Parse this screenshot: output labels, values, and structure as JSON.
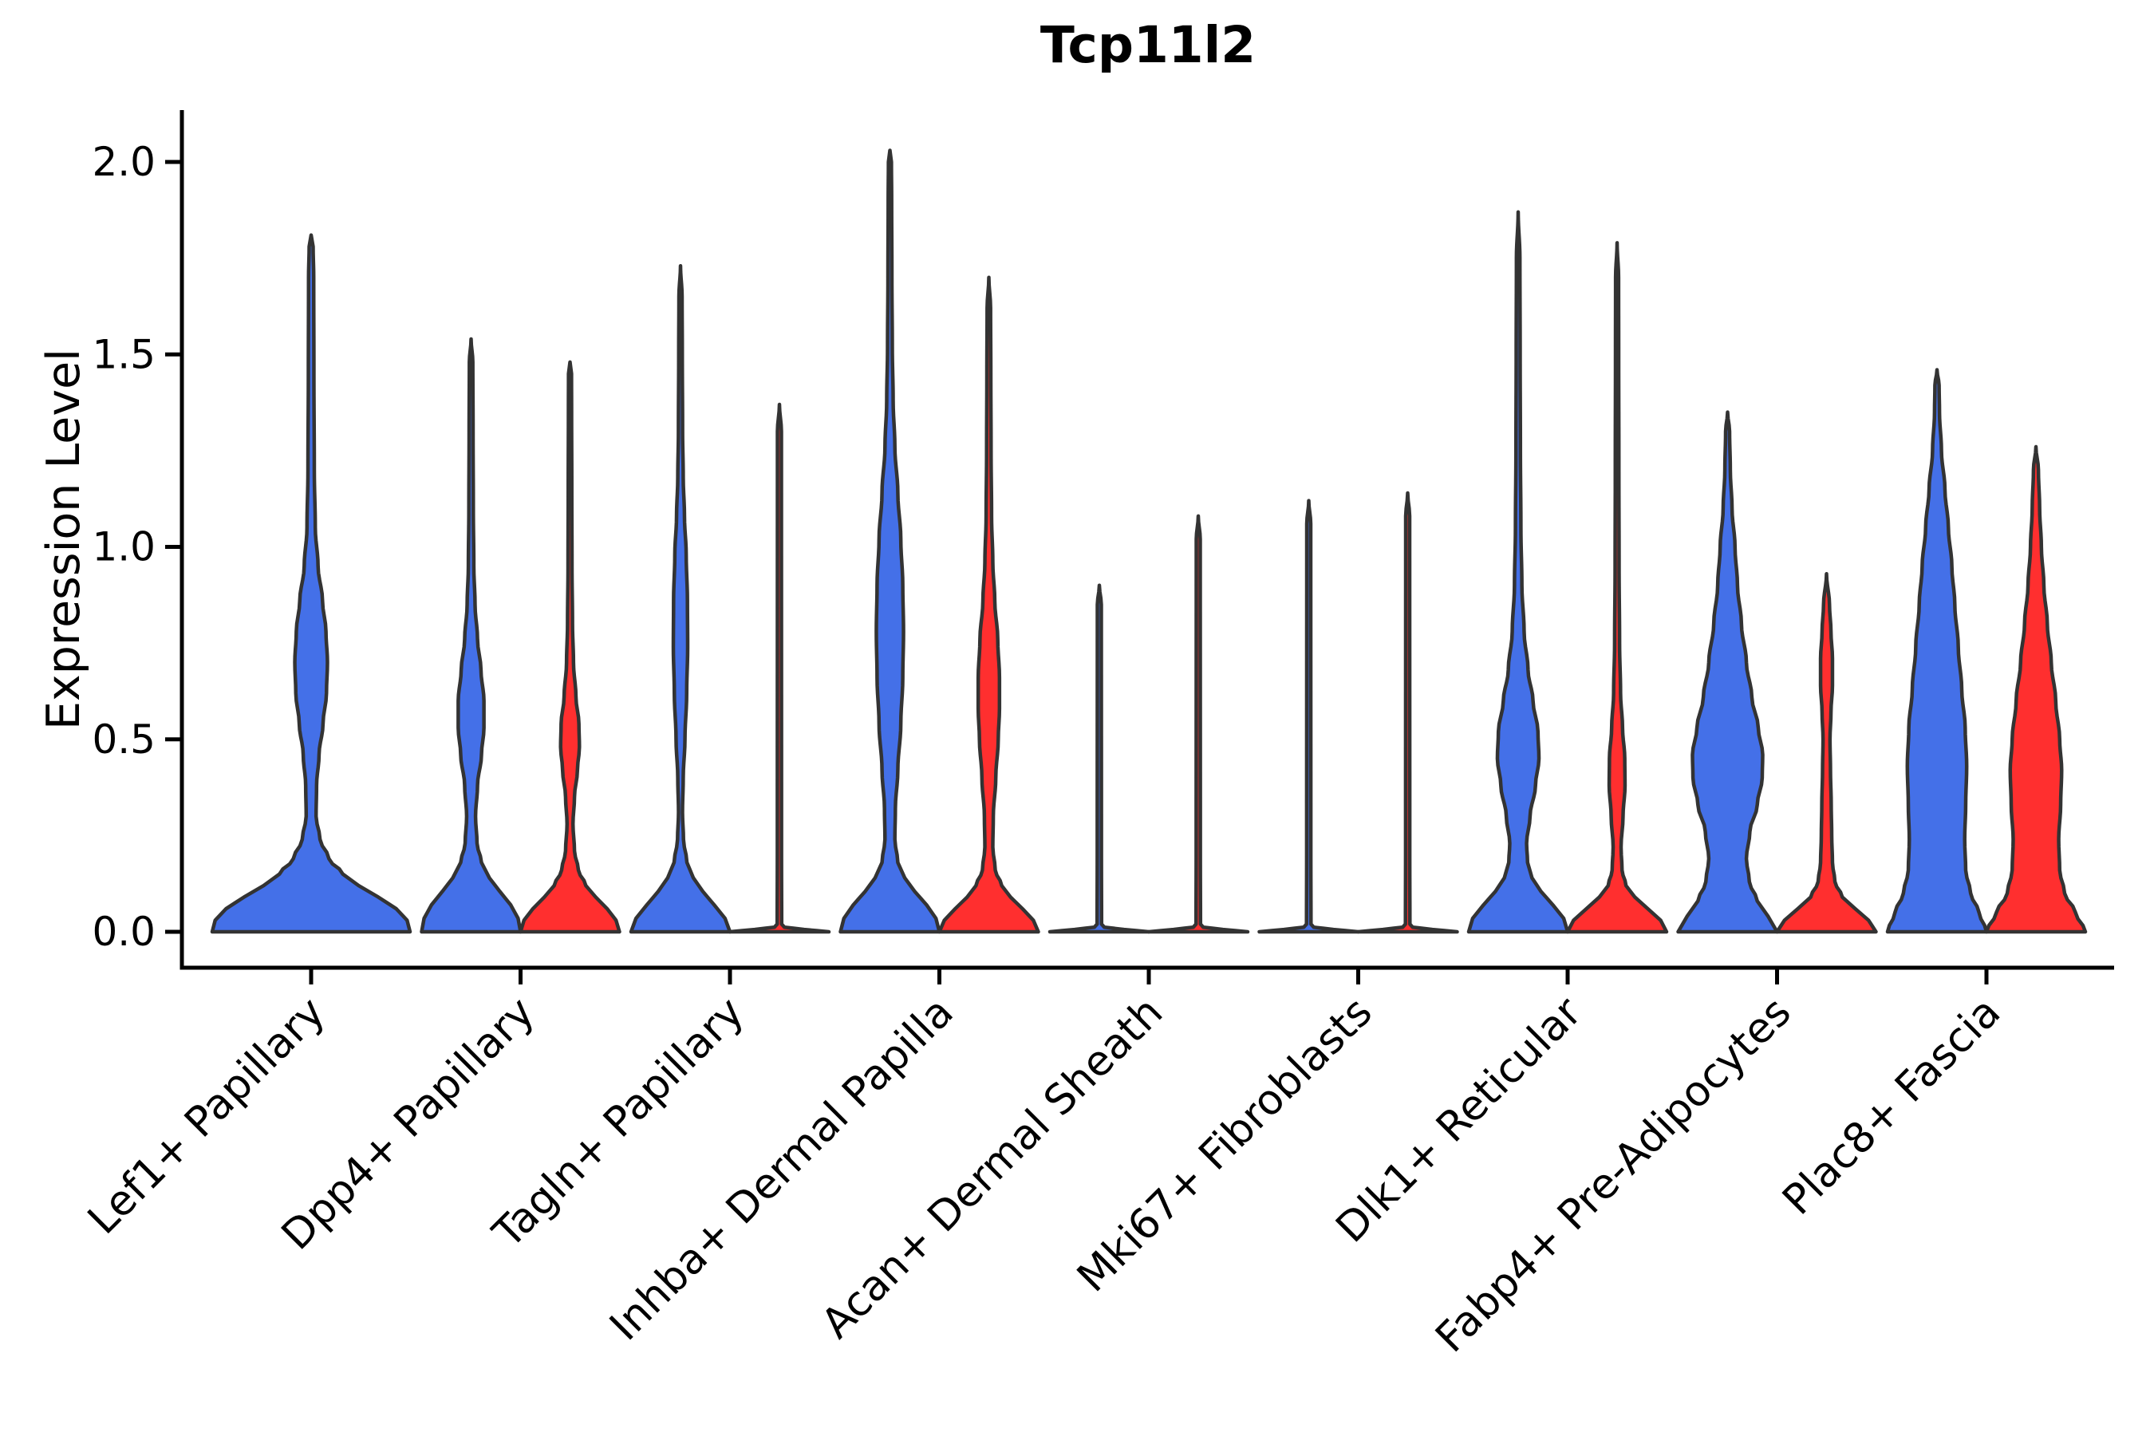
{
  "figure": {
    "background": "#FFFFFF"
  },
  "styles": {
    "violin_outline": "#333333",
    "axis_color": "#000000",
    "tick_label_color": "#000000",
    "blue_fill": "#4470E8",
    "red_fill": "#FF2F2F"
  },
  "chart_data": {
    "type": "violin",
    "title": "Tcp11l2",
    "xlabel": "",
    "ylabel": "Expression Level",
    "ylim": [
      0,
      2.13
    ],
    "grid": false,
    "legend": null,
    "yticks": [
      {
        "value": 0.0,
        "label": "0.0"
      },
      {
        "value": 0.5,
        "label": "0.5"
      },
      {
        "value": 1.0,
        "label": "1.0"
      },
      {
        "value": 1.5,
        "label": "1.5"
      },
      {
        "value": 2.0,
        "label": "2.0"
      }
    ],
    "categories": [
      "Lef1+ Papillary",
      "Dpp4+ Papillary",
      "Tagln+ Papillary",
      "Inhba+ Dermal Papilla",
      "Acan+ Dermal Sheath",
      "Mki67+ Fibroblasts",
      "Dlk1+ Reticular",
      "Fabp4+ Pre-Adipocytes",
      "Plac8+ Fascia"
    ],
    "series": [
      {
        "id": "blue",
        "color": "#4470E8"
      },
      {
        "id": "red",
        "color": "#FF2F2F"
      }
    ],
    "violins": [
      {
        "category_index": 0,
        "series": "blue",
        "span": "full",
        "peak": 1.81,
        "profile": [
          [
            0,
            1
          ],
          [
            0.03,
            0.97
          ],
          [
            0.06,
            0.86
          ],
          [
            0.09,
            0.68
          ],
          [
            0.12,
            0.48
          ],
          [
            0.15,
            0.32
          ],
          [
            0.19,
            0.18
          ],
          [
            0.24,
            0.09
          ],
          [
            0.3,
            0.05
          ],
          [
            0.38,
            0.055
          ],
          [
            0.46,
            0.08
          ],
          [
            0.54,
            0.12
          ],
          [
            0.62,
            0.155
          ],
          [
            0.7,
            0.165
          ],
          [
            0.78,
            0.15
          ],
          [
            0.86,
            0.115
          ],
          [
            0.95,
            0.07
          ],
          [
            1.05,
            0.042
          ],
          [
            1.2,
            0.032
          ],
          [
            1.45,
            0.028
          ],
          [
            1.7,
            0.026
          ],
          [
            1.78,
            0.02
          ],
          [
            1.81,
            0
          ]
        ]
      },
      {
        "category_index": 1,
        "series": "blue",
        "span": "left",
        "peak": 1.54,
        "profile": [
          [
            0,
            1
          ],
          [
            0.035,
            0.95
          ],
          [
            0.07,
            0.8
          ],
          [
            0.105,
            0.58
          ],
          [
            0.14,
            0.37
          ],
          [
            0.18,
            0.21
          ],
          [
            0.23,
            0.12
          ],
          [
            0.3,
            0.09
          ],
          [
            0.38,
            0.13
          ],
          [
            0.46,
            0.21
          ],
          [
            0.53,
            0.26
          ],
          [
            0.6,
            0.26
          ],
          [
            0.68,
            0.2
          ],
          [
            0.76,
            0.13
          ],
          [
            0.85,
            0.08
          ],
          [
            0.95,
            0.055
          ],
          [
            1.1,
            0.045
          ],
          [
            1.3,
            0.04
          ],
          [
            1.48,
            0.035
          ],
          [
            1.54,
            0
          ]
        ]
      },
      {
        "category_index": 1,
        "series": "red",
        "span": "right",
        "peak": 1.48,
        "profile": [
          [
            0,
            1
          ],
          [
            0.03,
            0.93
          ],
          [
            0.06,
            0.75
          ],
          [
            0.09,
            0.52
          ],
          [
            0.12,
            0.32
          ],
          [
            0.16,
            0.17
          ],
          [
            0.21,
            0.09
          ],
          [
            0.28,
            0.06
          ],
          [
            0.35,
            0.09
          ],
          [
            0.42,
            0.15
          ],
          [
            0.48,
            0.19
          ],
          [
            0.54,
            0.18
          ],
          [
            0.61,
            0.12
          ],
          [
            0.7,
            0.07
          ],
          [
            0.8,
            0.05
          ],
          [
            0.95,
            0.04
          ],
          [
            1.15,
            0.036
          ],
          [
            1.35,
            0.032
          ],
          [
            1.45,
            0.03
          ],
          [
            1.48,
            0
          ]
        ]
      },
      {
        "category_index": 2,
        "series": "blue",
        "span": "left",
        "peak": 1.73,
        "profile": [
          [
            0,
            1
          ],
          [
            0.035,
            0.9
          ],
          [
            0.07,
            0.68
          ],
          [
            0.105,
            0.45
          ],
          [
            0.14,
            0.26
          ],
          [
            0.18,
            0.13
          ],
          [
            0.24,
            0.06
          ],
          [
            0.31,
            0.04
          ],
          [
            0.4,
            0.055
          ],
          [
            0.5,
            0.09
          ],
          [
            0.62,
            0.125
          ],
          [
            0.74,
            0.145
          ],
          [
            0.86,
            0.14
          ],
          [
            0.98,
            0.115
          ],
          [
            1.08,
            0.08
          ],
          [
            1.18,
            0.055
          ],
          [
            1.3,
            0.042
          ],
          [
            1.5,
            0.036
          ],
          [
            1.65,
            0.032
          ],
          [
            1.73,
            0
          ]
        ]
      },
      {
        "category_index": 2,
        "series": "red",
        "span": "right",
        "peak": 1.37,
        "profile": [
          [
            0,
            1
          ],
          [
            0.006,
            0.5
          ],
          [
            0.012,
            0.1
          ],
          [
            0.02,
            0.045
          ],
          [
            0.2,
            0.042
          ],
          [
            1.3,
            0.04
          ],
          [
            1.37,
            0
          ]
        ]
      },
      {
        "category_index": 3,
        "series": "blue",
        "span": "left",
        "peak": 2.03,
        "profile": [
          [
            0,
            1
          ],
          [
            0.035,
            0.93
          ],
          [
            0.07,
            0.74
          ],
          [
            0.105,
            0.5
          ],
          [
            0.14,
            0.3
          ],
          [
            0.18,
            0.16
          ],
          [
            0.24,
            0.1
          ],
          [
            0.32,
            0.11
          ],
          [
            0.42,
            0.16
          ],
          [
            0.54,
            0.22
          ],
          [
            0.66,
            0.26
          ],
          [
            0.78,
            0.275
          ],
          [
            0.9,
            0.26
          ],
          [
            1.02,
            0.22
          ],
          [
            1.14,
            0.16
          ],
          [
            1.26,
            0.1
          ],
          [
            1.38,
            0.065
          ],
          [
            1.52,
            0.048
          ],
          [
            1.7,
            0.04
          ],
          [
            1.9,
            0.035
          ],
          [
            2.0,
            0.03
          ],
          [
            2.03,
            0
          ]
        ]
      },
      {
        "category_index": 3,
        "series": "red",
        "span": "right",
        "peak": 1.7,
        "profile": [
          [
            0,
            1
          ],
          [
            0.03,
            0.9
          ],
          [
            0.06,
            0.68
          ],
          [
            0.09,
            0.44
          ],
          [
            0.12,
            0.26
          ],
          [
            0.16,
            0.13
          ],
          [
            0.22,
            0.08
          ],
          [
            0.3,
            0.09
          ],
          [
            0.4,
            0.14
          ],
          [
            0.5,
            0.19
          ],
          [
            0.58,
            0.215
          ],
          [
            0.66,
            0.215
          ],
          [
            0.76,
            0.18
          ],
          [
            0.86,
            0.12
          ],
          [
            0.96,
            0.08
          ],
          [
            1.08,
            0.055
          ],
          [
            1.25,
            0.045
          ],
          [
            1.45,
            0.04
          ],
          [
            1.62,
            0.035
          ],
          [
            1.7,
            0
          ]
        ]
      },
      {
        "category_index": 4,
        "series": "blue",
        "span": "left",
        "peak": 0.9,
        "profile": [
          [
            0,
            1
          ],
          [
            0.006,
            0.5
          ],
          [
            0.012,
            0.1
          ],
          [
            0.02,
            0.045
          ],
          [
            0.2,
            0.042
          ],
          [
            0.85,
            0.04
          ],
          [
            0.9,
            0
          ]
        ]
      },
      {
        "category_index": 4,
        "series": "red",
        "span": "right",
        "peak": 1.08,
        "profile": [
          [
            0,
            1
          ],
          [
            0.006,
            0.5
          ],
          [
            0.012,
            0.1
          ],
          [
            0.02,
            0.045
          ],
          [
            0.2,
            0.042
          ],
          [
            1.02,
            0.04
          ],
          [
            1.08,
            0
          ]
        ]
      },
      {
        "category_index": 5,
        "series": "blue",
        "span": "left",
        "peak": 1.12,
        "profile": [
          [
            0,
            1
          ],
          [
            0.006,
            0.5
          ],
          [
            0.012,
            0.1
          ],
          [
            0.02,
            0.045
          ],
          [
            0.2,
            0.042
          ],
          [
            1.06,
            0.04
          ],
          [
            1.12,
            0
          ]
        ]
      },
      {
        "category_index": 5,
        "series": "red",
        "span": "right",
        "peak": 1.14,
        "profile": [
          [
            0,
            1
          ],
          [
            0.006,
            0.5
          ],
          [
            0.012,
            0.1
          ],
          [
            0.02,
            0.045
          ],
          [
            0.2,
            0.042
          ],
          [
            1.08,
            0.04
          ],
          [
            1.14,
            0
          ]
        ]
      },
      {
        "category_index": 6,
        "series": "blue",
        "span": "left",
        "peak": 1.87,
        "profile": [
          [
            0,
            1
          ],
          [
            0.035,
            0.92
          ],
          [
            0.07,
            0.7
          ],
          [
            0.105,
            0.46
          ],
          [
            0.14,
            0.28
          ],
          [
            0.18,
            0.19
          ],
          [
            0.23,
            0.17
          ],
          [
            0.3,
            0.24
          ],
          [
            0.38,
            0.35
          ],
          [
            0.45,
            0.42
          ],
          [
            0.52,
            0.4
          ],
          [
            0.6,
            0.3
          ],
          [
            0.68,
            0.2
          ],
          [
            0.78,
            0.12
          ],
          [
            0.9,
            0.075
          ],
          [
            1.05,
            0.055
          ],
          [
            1.25,
            0.045
          ],
          [
            1.5,
            0.04
          ],
          [
            1.75,
            0.035
          ],
          [
            1.87,
            0
          ]
        ]
      },
      {
        "category_index": 6,
        "series": "red",
        "span": "right",
        "peak": 1.79,
        "profile": [
          [
            0,
            1
          ],
          [
            0.03,
            0.88
          ],
          [
            0.06,
            0.62
          ],
          [
            0.09,
            0.36
          ],
          [
            0.12,
            0.18
          ],
          [
            0.16,
            0.1
          ],
          [
            0.22,
            0.08
          ],
          [
            0.3,
            0.12
          ],
          [
            0.38,
            0.16
          ],
          [
            0.45,
            0.155
          ],
          [
            0.53,
            0.11
          ],
          [
            0.62,
            0.07
          ],
          [
            0.75,
            0.05
          ],
          [
            0.95,
            0.04
          ],
          [
            1.2,
            0.036
          ],
          [
            1.5,
            0.032
          ],
          [
            1.7,
            0.03
          ],
          [
            1.79,
            0
          ]
        ]
      },
      {
        "category_index": 7,
        "series": "blue",
        "span": "left",
        "peak": 1.35,
        "profile": [
          [
            0,
            1
          ],
          [
            0.04,
            0.82
          ],
          [
            0.08,
            0.6
          ],
          [
            0.13,
            0.44
          ],
          [
            0.19,
            0.38
          ],
          [
            0.26,
            0.45
          ],
          [
            0.33,
            0.6
          ],
          [
            0.4,
            0.7
          ],
          [
            0.46,
            0.71
          ],
          [
            0.53,
            0.62
          ],
          [
            0.61,
            0.49
          ],
          [
            0.7,
            0.38
          ],
          [
            0.8,
            0.28
          ],
          [
            0.9,
            0.2
          ],
          [
            1.0,
            0.15
          ],
          [
            1.1,
            0.09
          ],
          [
            1.2,
            0.055
          ],
          [
            1.3,
            0.04
          ],
          [
            1.35,
            0
          ]
        ]
      },
      {
        "category_index": 7,
        "series": "red",
        "span": "right",
        "peak": 0.93,
        "profile": [
          [
            0,
            1
          ],
          [
            0.03,
            0.85
          ],
          [
            0.06,
            0.58
          ],
          [
            0.09,
            0.32
          ],
          [
            0.13,
            0.17
          ],
          [
            0.18,
            0.12
          ],
          [
            0.25,
            0.105
          ],
          [
            0.33,
            0.095
          ],
          [
            0.42,
            0.08
          ],
          [
            0.5,
            0.07
          ],
          [
            0.57,
            0.09
          ],
          [
            0.64,
            0.12
          ],
          [
            0.71,
            0.12
          ],
          [
            0.78,
            0.09
          ],
          [
            0.85,
            0.06
          ],
          [
            0.93,
            0
          ]
        ]
      },
      {
        "category_index": 8,
        "series": "blue",
        "span": "left",
        "peak": 1.46,
        "profile": [
          [
            0,
            1
          ],
          [
            0.05,
            0.85
          ],
          [
            0.1,
            0.68
          ],
          [
            0.16,
            0.58
          ],
          [
            0.24,
            0.56
          ],
          [
            0.33,
            0.58
          ],
          [
            0.43,
            0.6
          ],
          [
            0.53,
            0.57
          ],
          [
            0.63,
            0.5
          ],
          [
            0.74,
            0.43
          ],
          [
            0.85,
            0.36
          ],
          [
            0.95,
            0.3
          ],
          [
            1.05,
            0.23
          ],
          [
            1.15,
            0.16
          ],
          [
            1.25,
            0.09
          ],
          [
            1.35,
            0.05
          ],
          [
            1.42,
            0.042
          ],
          [
            1.46,
            0
          ]
        ]
      },
      {
        "category_index": 8,
        "series": "red",
        "span": "right",
        "peak": 1.26,
        "profile": [
          [
            0,
            1
          ],
          [
            0.05,
            0.8
          ],
          [
            0.1,
            0.58
          ],
          [
            0.16,
            0.48
          ],
          [
            0.24,
            0.46
          ],
          [
            0.33,
            0.5
          ],
          [
            0.42,
            0.52
          ],
          [
            0.5,
            0.48
          ],
          [
            0.6,
            0.4
          ],
          [
            0.7,
            0.31
          ],
          [
            0.8,
            0.23
          ],
          [
            0.9,
            0.16
          ],
          [
            1.0,
            0.11
          ],
          [
            1.1,
            0.075
          ],
          [
            1.2,
            0.05
          ],
          [
            1.26,
            0
          ]
        ]
      }
    ]
  }
}
